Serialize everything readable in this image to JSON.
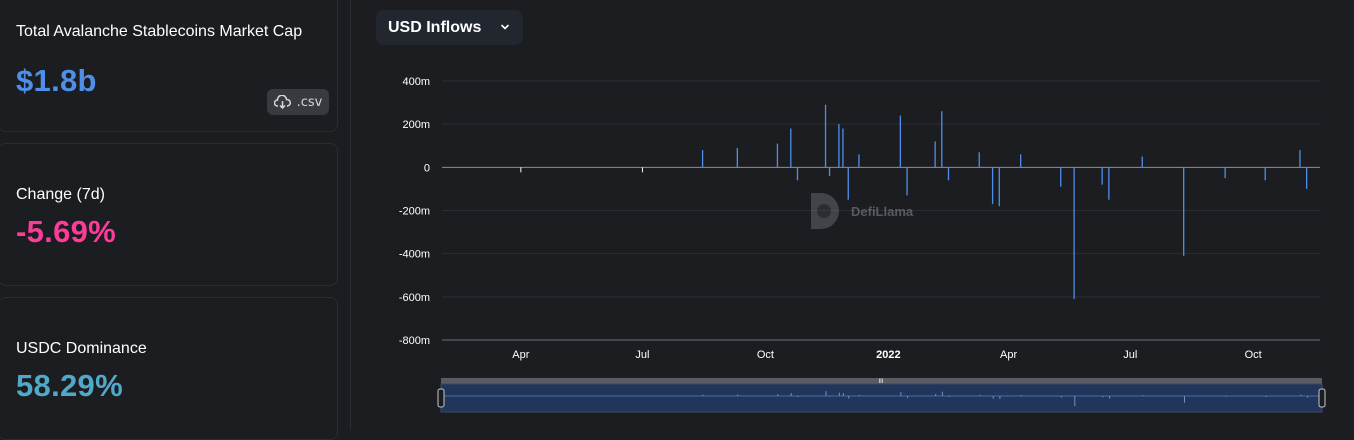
{
  "stats": [
    {
      "label": "Total Avalanche Stablecoins Market Cap",
      "value": "$1.8b",
      "color": "#4f8fea"
    },
    {
      "label": "Change (7d)",
      "value": "-5.69%",
      "color": "#fd3c99"
    },
    {
      "label": "USDC Dominance",
      "value": "58.29%",
      "color": "#4fa9c9"
    }
  ],
  "download_button": {
    "label": ".csv",
    "icon": "cloud-download-icon"
  },
  "dropdown": {
    "label": "USD Inflows",
    "icon": "chevron-down-icon"
  },
  "watermark": {
    "text": "DefiLlama",
    "icon": "defillama-logo-icon"
  },
  "slider": {
    "grip_label": "III"
  },
  "colors": {
    "bar": "#4f8fea",
    "grid": "#2c2d33",
    "background": "#1c1d21"
  },
  "chart_data": {
    "type": "bar",
    "title": "",
    "xlabel": "",
    "ylabel": "",
    "ylim": [
      -800,
      400
    ],
    "y_unit": "m",
    "yticks": [
      "400m",
      "200m",
      "0",
      "-200m",
      "-400m",
      "-600m",
      "-800m"
    ],
    "xticks": [
      "Apr",
      "Jul",
      "Oct",
      "2022",
      "Apr",
      "Jul",
      "Oct"
    ],
    "x_range": [
      "2021-02",
      "2022-11"
    ],
    "grid": true,
    "series": [
      {
        "values_usd_millions": [
          {
            "x": "2021-08-15",
            "y": 80
          },
          {
            "x": "2021-09-10",
            "y": 90
          },
          {
            "x": "2021-10-10",
            "y": 110
          },
          {
            "x": "2021-10-20",
            "y": 180
          },
          {
            "x": "2021-10-25",
            "y": -60
          },
          {
            "x": "2021-11-15",
            "y": 290
          },
          {
            "x": "2021-11-18",
            "y": -40
          },
          {
            "x": "2021-11-25",
            "y": 200
          },
          {
            "x": "2021-11-28",
            "y": 180
          },
          {
            "x": "2021-12-02",
            "y": -150
          },
          {
            "x": "2021-12-10",
            "y": 60
          },
          {
            "x": "2022-01-10",
            "y": 240
          },
          {
            "x": "2022-01-15",
            "y": -130
          },
          {
            "x": "2022-02-05",
            "y": 120
          },
          {
            "x": "2022-02-10",
            "y": 260
          },
          {
            "x": "2022-02-15",
            "y": -60
          },
          {
            "x": "2022-03-10",
            "y": 70
          },
          {
            "x": "2022-03-20",
            "y": -170
          },
          {
            "x": "2022-03-25",
            "y": -180
          },
          {
            "x": "2022-04-10",
            "y": 60
          },
          {
            "x": "2022-05-10",
            "y": -90
          },
          {
            "x": "2022-05-20",
            "y": -610
          },
          {
            "x": "2022-06-10",
            "y": -80
          },
          {
            "x": "2022-06-15",
            "y": -150
          },
          {
            "x": "2022-07-10",
            "y": 50
          },
          {
            "x": "2022-08-10",
            "y": -410
          },
          {
            "x": "2022-09-10",
            "y": -50
          },
          {
            "x": "2022-10-10",
            "y": -60
          },
          {
            "x": "2022-11-05",
            "y": 80
          },
          {
            "x": "2022-11-10",
            "y": -100
          }
        ]
      }
    ]
  }
}
